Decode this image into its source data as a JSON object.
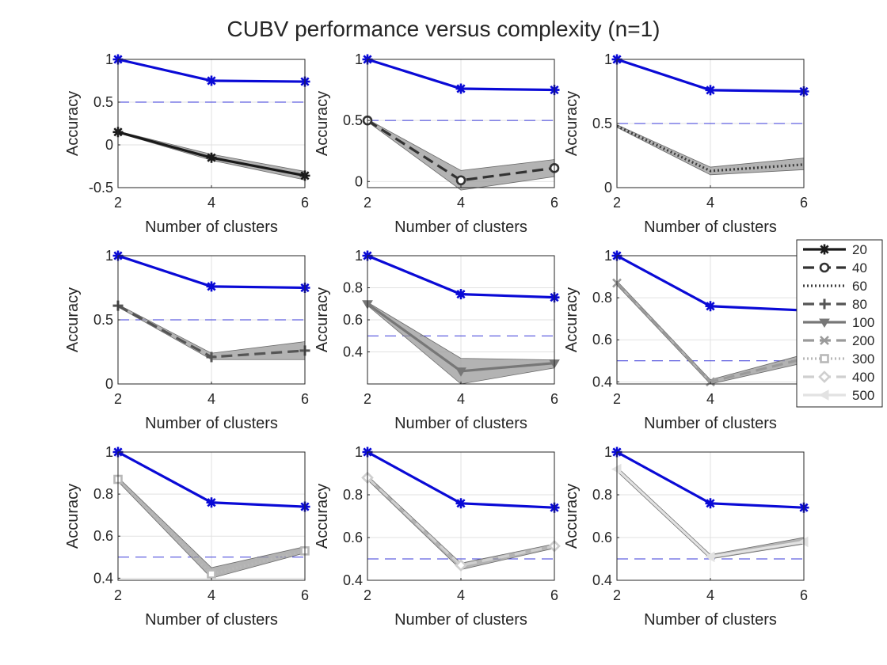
{
  "chart_data": {
    "type": "line",
    "title": "CUBV performance versus complexity (n=1)",
    "reference_color": "#0a0ad6",
    "band_color": "#9a9a9a",
    "legend": [
      {
        "name": "20",
        "color": "#1a1a1a",
        "dash": "",
        "marker": "star"
      },
      {
        "name": "40",
        "color": "#333333",
        "dash": "14 7",
        "marker": "circle"
      },
      {
        "name": "60",
        "color": "#3d3d3d",
        "dash": "2 3",
        "marker": "none"
      },
      {
        "name": "80",
        "color": "#555555",
        "dash": "14 7",
        "marker": "plus"
      },
      {
        "name": "100",
        "color": "#777777",
        "dash": "",
        "marker": "triangle"
      },
      {
        "name": "200",
        "color": "#9a9a9a",
        "dash": "14 7",
        "marker": "x"
      },
      {
        "name": "300",
        "color": "#b8b8b8",
        "dash": "2 3",
        "marker": "square"
      },
      {
        "name": "400",
        "color": "#cfcfcf",
        "dash": "14 7",
        "marker": "diamond"
      },
      {
        "name": "500",
        "color": "#e2e2e2",
        "dash": "",
        "marker": "triangle-left"
      }
    ],
    "subplots": [
      {
        "xlabel": "Number of clusters",
        "ylabel": "Accuracy",
        "x": [
          2,
          4,
          6
        ],
        "xticks": [
          "2",
          "4",
          "6"
        ],
        "ylim": [
          -0.5,
          1
        ],
        "yticks": [
          -0.5,
          0,
          0.5,
          1
        ],
        "ytick_labels": [
          "-0.5",
          "0",
          "0.5",
          "1"
        ],
        "ref_line": 0.5,
        "reference": [
          1.0,
          0.75,
          0.74
        ],
        "series": {
          "name": "20",
          "values": [
            0.15,
            -0.15,
            -0.36
          ]
        },
        "band_low": [
          0.14,
          -0.18,
          -0.41
        ],
        "band_high": [
          0.16,
          -0.11,
          -0.31
        ]
      },
      {
        "xlabel": "Number of clusters",
        "ylabel": "Accuracy",
        "x": [
          2,
          4,
          6
        ],
        "xticks": [
          "2",
          "4",
          "6"
        ],
        "ylim": [
          -0.05,
          1
        ],
        "yticks": [
          0,
          0.5,
          1
        ],
        "ytick_labels": [
          "0",
          "0.5",
          "1"
        ],
        "ref_line": 0.5,
        "reference": [
          1.0,
          0.76,
          0.75
        ],
        "series": {
          "name": "40",
          "values": [
            0.5,
            0.01,
            0.11
          ]
        },
        "band_low": [
          0.49,
          -0.07,
          0.04
        ],
        "band_high": [
          0.51,
          0.09,
          0.18
        ]
      },
      {
        "xlabel": "Number of clusters",
        "ylabel": "Accuracy",
        "x": [
          2,
          4,
          6
        ],
        "xticks": [
          "2",
          "4",
          "6"
        ],
        "ylim": [
          0,
          1
        ],
        "yticks": [
          0,
          0.5,
          1
        ],
        "ytick_labels": [
          "0",
          "0.5",
          "1"
        ],
        "ref_line": 0.5,
        "reference": [
          1.0,
          0.76,
          0.75
        ],
        "series": {
          "name": "60",
          "values": [
            0.48,
            0.13,
            0.18
          ]
        },
        "band_low": [
          0.47,
          0.1,
          0.14
        ],
        "band_high": [
          0.49,
          0.16,
          0.23
        ]
      },
      {
        "xlabel": "Number of clusters",
        "ylabel": "Accuracy",
        "x": [
          2,
          4,
          6
        ],
        "xticks": [
          "2",
          "4",
          "6"
        ],
        "ylim": [
          0,
          1
        ],
        "yticks": [
          0,
          0.5,
          1
        ],
        "ytick_labels": [
          "0",
          "0.5",
          "1"
        ],
        "ref_line": 0.5,
        "reference": [
          1.0,
          0.76,
          0.75
        ],
        "series": {
          "name": "80",
          "values": [
            0.61,
            0.21,
            0.26
          ]
        },
        "band_low": [
          0.6,
          0.19,
          0.19
        ],
        "band_high": [
          0.62,
          0.24,
          0.33
        ]
      },
      {
        "xlabel": "Number of clusters",
        "ylabel": "Accuracy",
        "x": [
          2,
          4,
          6
        ],
        "xticks": [
          "2",
          "4",
          "6"
        ],
        "ylim": [
          0.2,
          1
        ],
        "yticks": [
          0.4,
          0.6,
          0.8,
          1
        ],
        "ytick_labels": [
          "0.4",
          "0.6",
          "0.8",
          "1"
        ],
        "ref_line": 0.5,
        "reference": [
          1.0,
          0.76,
          0.74
        ],
        "series": {
          "name": "100",
          "values": [
            0.7,
            0.28,
            0.33
          ]
        },
        "band_low": [
          0.69,
          0.2,
          0.3
        ],
        "band_high": [
          0.71,
          0.36,
          0.35
        ]
      },
      {
        "xlabel": "Number of clusters",
        "ylabel": "Accuracy",
        "x": [
          2,
          4,
          6
        ],
        "xticks": [
          "2",
          "4",
          "6"
        ],
        "ylim": [
          0.39,
          1
        ],
        "yticks": [
          0.4,
          0.6,
          0.8,
          1
        ],
        "ytick_labels": [
          "0.4",
          "0.6",
          "0.8",
          "1"
        ],
        "ref_line": 0.5,
        "reference": [
          1.0,
          0.76,
          0.74
        ],
        "series": {
          "name": "200",
          "values": [
            0.87,
            0.4,
            0.51
          ]
        },
        "band_low": [
          0.86,
          0.39,
          0.49
        ],
        "band_high": [
          0.88,
          0.41,
          0.53
        ]
      },
      {
        "xlabel": "Number of clusters",
        "ylabel": "Accuracy",
        "x": [
          2,
          4,
          6
        ],
        "xticks": [
          "2",
          "4",
          "6"
        ],
        "ylim": [
          0.39,
          1
        ],
        "yticks": [
          0.4,
          0.6,
          0.8,
          1
        ],
        "ytick_labels": [
          "0.4",
          "0.6",
          "0.8",
          "1"
        ],
        "ref_line": 0.5,
        "reference": [
          1.0,
          0.76,
          0.74
        ],
        "series": {
          "name": "300",
          "values": [
            0.87,
            0.42,
            0.53
          ]
        },
        "band_low": [
          0.86,
          0.4,
          0.52
        ],
        "band_high": [
          0.88,
          0.45,
          0.55
        ]
      },
      {
        "xlabel": "Number of clusters",
        "ylabel": "Accuracy",
        "x": [
          2,
          4,
          6
        ],
        "xticks": [
          "2",
          "4",
          "6"
        ],
        "ylim": [
          0.4,
          1
        ],
        "yticks": [
          0.4,
          0.6,
          0.8,
          1
        ],
        "ytick_labels": [
          "0.4",
          "0.6",
          "0.8",
          "1"
        ],
        "ref_line": 0.5,
        "reference": [
          1.0,
          0.76,
          0.74
        ],
        "series": {
          "name": "400",
          "values": [
            0.88,
            0.47,
            0.56
          ]
        },
        "band_low": [
          0.87,
          0.45,
          0.55
        ],
        "band_high": [
          0.89,
          0.48,
          0.57
        ]
      },
      {
        "xlabel": "Number of clusters",
        "ylabel": "Accuracy",
        "x": [
          2,
          4,
          6
        ],
        "xticks": [
          "2",
          "4",
          "6"
        ],
        "ylim": [
          0.4,
          1
        ],
        "yticks": [
          0.4,
          0.6,
          0.8,
          1
        ],
        "ytick_labels": [
          "0.4",
          "0.6",
          "0.8",
          "1"
        ],
        "ref_line": 0.5,
        "reference": [
          1.0,
          0.76,
          0.74
        ],
        "series": {
          "name": "500",
          "values": [
            0.92,
            0.51,
            0.58
          ]
        },
        "band_low": [
          0.91,
          0.5,
          0.57
        ],
        "band_high": [
          0.93,
          0.52,
          0.6
        ]
      }
    ]
  }
}
